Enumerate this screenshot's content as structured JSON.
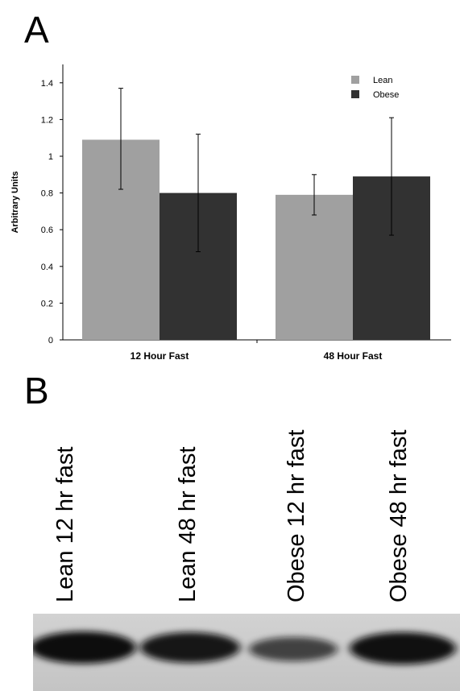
{
  "panel_a": {
    "letter": "A"
  },
  "panel_b": {
    "letter": "B",
    "lane_labels": [
      "Lean 12 hr fast",
      "Lean 48 hr fast",
      "Obese 12 hr fast",
      "Obese 48 hr fast"
    ]
  },
  "chart_data": {
    "type": "bar",
    "title": "",
    "xlabel": "",
    "ylabel": "Arbitrary Units",
    "ylim": [
      0,
      1.5
    ],
    "yticks": [
      0,
      0.2,
      0.4,
      0.6,
      0.8,
      1,
      1.2,
      1.4
    ],
    "ytick_labels": [
      "0",
      "0.2",
      "0.4",
      "0.6",
      "0.8",
      "1",
      "1.2",
      "1.4"
    ],
    "categories": [
      "12 Hour Fast",
      "48 Hour Fast"
    ],
    "series": [
      {
        "name": "Lean",
        "color": "#a0a0a0",
        "values": [
          1.09,
          0.79
        ],
        "error_low": [
          0.82,
          0.68
        ],
        "error_high": [
          1.37,
          0.9
        ]
      },
      {
        "name": "Obese",
        "color": "#323232",
        "values": [
          0.8,
          0.89
        ],
        "error_low": [
          0.48,
          0.57
        ],
        "error_high": [
          1.12,
          1.21
        ]
      }
    ],
    "legend": "top-right",
    "grid": false
  },
  "blot": {
    "band_intensity": [
      1.0,
      0.95,
      0.72,
      0.98
    ]
  }
}
